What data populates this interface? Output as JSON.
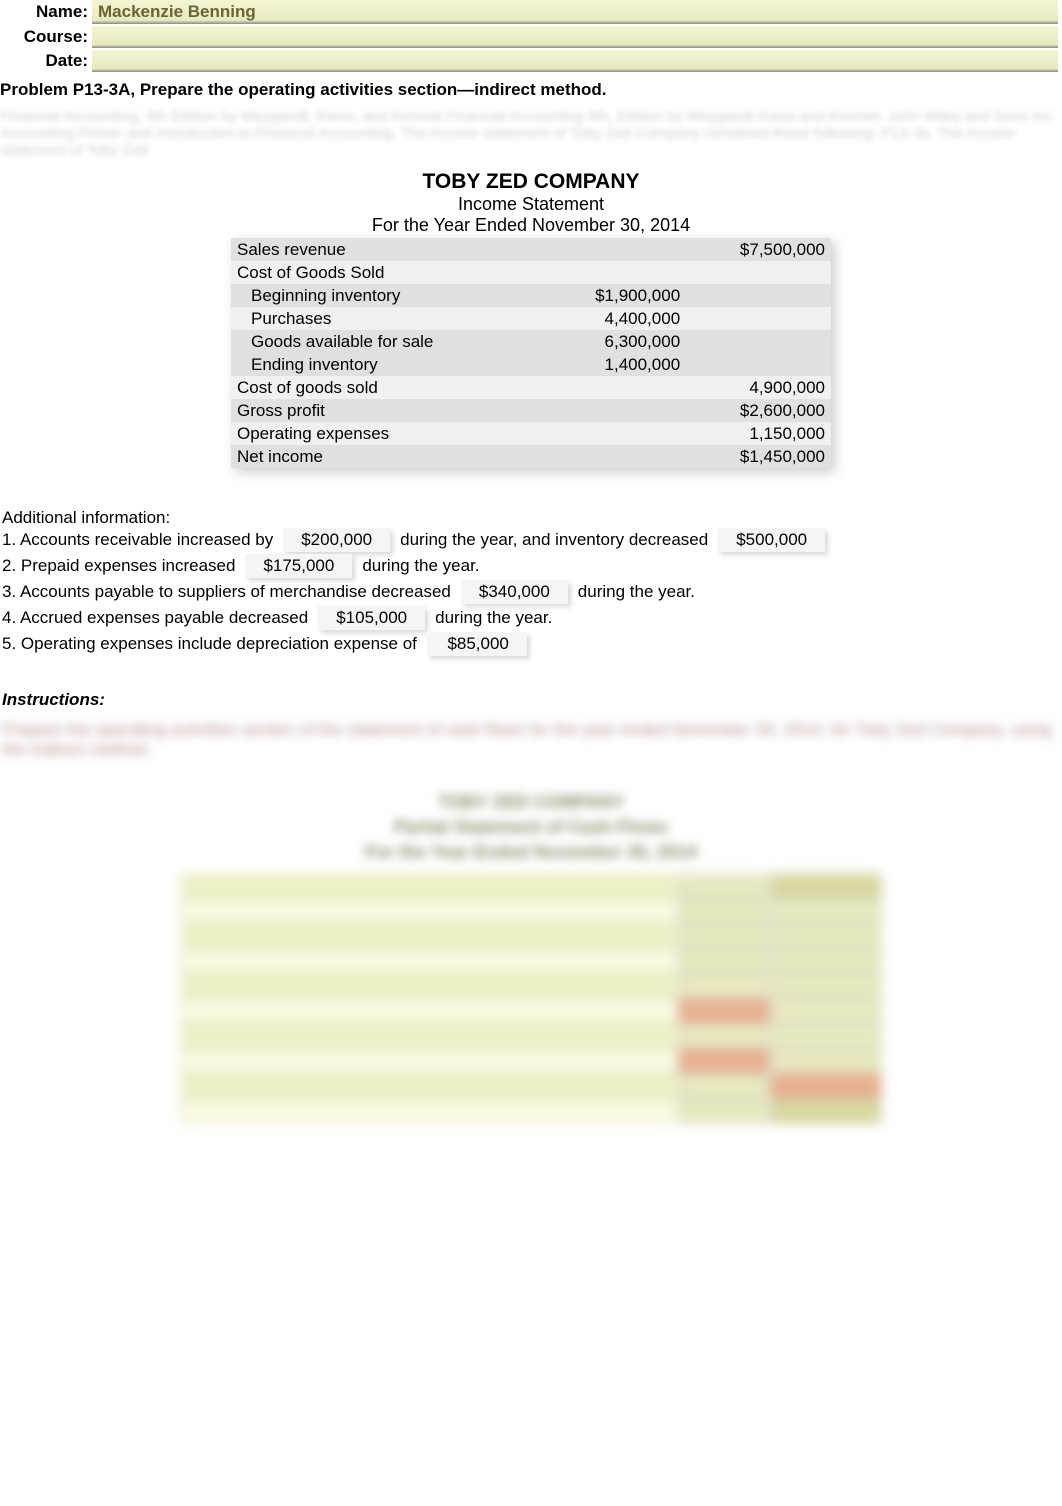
{
  "header": {
    "name_label": "Name:",
    "name_value": "Mackenzie Benning",
    "course_label": "Course:",
    "course_value": "",
    "date_label": "Date:",
    "date_value": ""
  },
  "problem_title": "Problem P13-3A, Prepare the operating activities section—indirect method.",
  "watermark": "Financial Accounting, 9th Edition by Weygandt, Kieso, and Kimmel Financial Accounting 9th, Edition by Weygandt Kieso and Kimmel, John Wiley and Sons Inc. Accounting Primer and Introduction to Financial Accounting. The income statement of Toby Zed Company contained these following: P13-3a. The income statement of Toby Zed",
  "income_statement": {
    "company": "TOBY ZED COMPANY",
    "title": "Income Statement",
    "period": "For the Year Ended November 30, 2014",
    "rows": [
      {
        "label": "Sales revenue",
        "col1": "",
        "col2": "$7,500,000",
        "indent": false,
        "zebra": "dark"
      },
      {
        "label": "Cost of Goods Sold",
        "col1": "",
        "col2": "",
        "indent": false,
        "zebra": "light"
      },
      {
        "label": "Beginning inventory",
        "col1": "$1,900,000",
        "col2": "",
        "indent": true,
        "zebra": "dark"
      },
      {
        "label": "Purchases",
        "col1": "4,400,000",
        "col2": "",
        "indent": true,
        "zebra": "light"
      },
      {
        "label": "Goods available for sale",
        "col1": "6,300,000",
        "col2": "",
        "indent": true,
        "zebra": "dark"
      },
      {
        "label": "Ending inventory",
        "col1": "1,400,000",
        "col2": "",
        "indent": true,
        "zebra": "dark"
      },
      {
        "label": "Cost of goods sold",
        "col1": "",
        "col2": "4,900,000",
        "indent": false,
        "zebra": "light"
      },
      {
        "label": "Gross profit",
        "col1": "",
        "col2": "$2,600,000",
        "indent": false,
        "zebra": "dark"
      },
      {
        "label": "Operating expenses",
        "col1": "",
        "col2": "1,150,000",
        "indent": false,
        "zebra": "light"
      },
      {
        "label": "Net income",
        "col1": "",
        "col2": "$1,450,000",
        "indent": false,
        "zebra": "dark"
      }
    ],
    "colors": {
      "zebra_light": "#f0f0f0",
      "zebra_dark": "#e0e0e0"
    }
  },
  "additional_info": {
    "title": "Additional information:",
    "items": [
      {
        "pre": "1. Accounts receivable increased by",
        "val1": "$200,000",
        "mid": "during the year, and inventory decreased",
        "val2": "$500,000",
        "post": ""
      },
      {
        "pre": "2. Prepaid expenses increased",
        "val1": "$175,000",
        "mid": "during the year.",
        "val2": "",
        "post": ""
      },
      {
        "pre": "3. Accounts payable to suppliers of merchandise decreased",
        "val1": "$340,000",
        "mid": "during the year.",
        "val2": "",
        "post": ""
      },
      {
        "pre": "4. Accrued expenses payable decreased",
        "val1": "$105,000",
        "mid": "during the year.",
        "val2": "",
        "post": ""
      },
      {
        "pre": "5. Operating expenses include depreciation expense of",
        "val1": "$85,000",
        "mid": "",
        "val2": "",
        "post": ""
      }
    ]
  },
  "instructions": {
    "label": "Instructions:",
    "blurred_text": "Prepare the operating activities section of the statement of cash flows for the year ended November 30, 2014, for Toby Zed Company, using the indirect method."
  },
  "cash_flow": {
    "company": "TOBY ZED COMPANY",
    "title": "Partial Statement of Cash Flows",
    "period": "For the Year Ended November 30, 2014",
    "colors": {
      "label_bg": "#f0f0c8",
      "label_light_bg": "#fafae0",
      "num_bg": "#e8e8c0",
      "num_red_bg": "#e8b090",
      "total_bg": "#d8d8a0"
    }
  }
}
